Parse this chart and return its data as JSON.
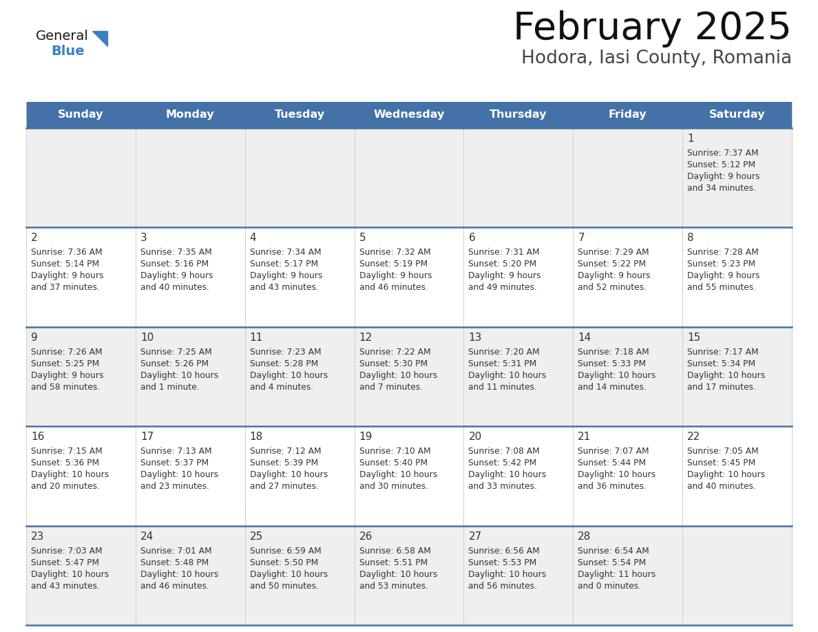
{
  "title": "February 2025",
  "subtitle": "Hodora, Iasi County, Romania",
  "header_color": "#4472A8",
  "header_text_color": "#FFFFFF",
  "cell_bg_even": "#EFEFEF",
  "cell_bg_odd": "#FFFFFF",
  "divider_color": "#4472A8",
  "text_color": "#333333",
  "day_headers": [
    "Sunday",
    "Monday",
    "Tuesday",
    "Wednesday",
    "Thursday",
    "Friday",
    "Saturday"
  ],
  "weeks": [
    [
      {
        "day": "",
        "info": ""
      },
      {
        "day": "",
        "info": ""
      },
      {
        "day": "",
        "info": ""
      },
      {
        "day": "",
        "info": ""
      },
      {
        "day": "",
        "info": ""
      },
      {
        "day": "",
        "info": ""
      },
      {
        "day": "1",
        "info": "Sunrise: 7:37 AM\nSunset: 5:12 PM\nDaylight: 9 hours\nand 34 minutes."
      }
    ],
    [
      {
        "day": "2",
        "info": "Sunrise: 7:36 AM\nSunset: 5:14 PM\nDaylight: 9 hours\nand 37 minutes."
      },
      {
        "day": "3",
        "info": "Sunrise: 7:35 AM\nSunset: 5:16 PM\nDaylight: 9 hours\nand 40 minutes."
      },
      {
        "day": "4",
        "info": "Sunrise: 7:34 AM\nSunset: 5:17 PM\nDaylight: 9 hours\nand 43 minutes."
      },
      {
        "day": "5",
        "info": "Sunrise: 7:32 AM\nSunset: 5:19 PM\nDaylight: 9 hours\nand 46 minutes."
      },
      {
        "day": "6",
        "info": "Sunrise: 7:31 AM\nSunset: 5:20 PM\nDaylight: 9 hours\nand 49 minutes."
      },
      {
        "day": "7",
        "info": "Sunrise: 7:29 AM\nSunset: 5:22 PM\nDaylight: 9 hours\nand 52 minutes."
      },
      {
        "day": "8",
        "info": "Sunrise: 7:28 AM\nSunset: 5:23 PM\nDaylight: 9 hours\nand 55 minutes."
      }
    ],
    [
      {
        "day": "9",
        "info": "Sunrise: 7:26 AM\nSunset: 5:25 PM\nDaylight: 9 hours\nand 58 minutes."
      },
      {
        "day": "10",
        "info": "Sunrise: 7:25 AM\nSunset: 5:26 PM\nDaylight: 10 hours\nand 1 minute."
      },
      {
        "day": "11",
        "info": "Sunrise: 7:23 AM\nSunset: 5:28 PM\nDaylight: 10 hours\nand 4 minutes."
      },
      {
        "day": "12",
        "info": "Sunrise: 7:22 AM\nSunset: 5:30 PM\nDaylight: 10 hours\nand 7 minutes."
      },
      {
        "day": "13",
        "info": "Sunrise: 7:20 AM\nSunset: 5:31 PM\nDaylight: 10 hours\nand 11 minutes."
      },
      {
        "day": "14",
        "info": "Sunrise: 7:18 AM\nSunset: 5:33 PM\nDaylight: 10 hours\nand 14 minutes."
      },
      {
        "day": "15",
        "info": "Sunrise: 7:17 AM\nSunset: 5:34 PM\nDaylight: 10 hours\nand 17 minutes."
      }
    ],
    [
      {
        "day": "16",
        "info": "Sunrise: 7:15 AM\nSunset: 5:36 PM\nDaylight: 10 hours\nand 20 minutes."
      },
      {
        "day": "17",
        "info": "Sunrise: 7:13 AM\nSunset: 5:37 PM\nDaylight: 10 hours\nand 23 minutes."
      },
      {
        "day": "18",
        "info": "Sunrise: 7:12 AM\nSunset: 5:39 PM\nDaylight: 10 hours\nand 27 minutes."
      },
      {
        "day": "19",
        "info": "Sunrise: 7:10 AM\nSunset: 5:40 PM\nDaylight: 10 hours\nand 30 minutes."
      },
      {
        "day": "20",
        "info": "Sunrise: 7:08 AM\nSunset: 5:42 PM\nDaylight: 10 hours\nand 33 minutes."
      },
      {
        "day": "21",
        "info": "Sunrise: 7:07 AM\nSunset: 5:44 PM\nDaylight: 10 hours\nand 36 minutes."
      },
      {
        "day": "22",
        "info": "Sunrise: 7:05 AM\nSunset: 5:45 PM\nDaylight: 10 hours\nand 40 minutes."
      }
    ],
    [
      {
        "day": "23",
        "info": "Sunrise: 7:03 AM\nSunset: 5:47 PM\nDaylight: 10 hours\nand 43 minutes."
      },
      {
        "day": "24",
        "info": "Sunrise: 7:01 AM\nSunset: 5:48 PM\nDaylight: 10 hours\nand 46 minutes."
      },
      {
        "day": "25",
        "info": "Sunrise: 6:59 AM\nSunset: 5:50 PM\nDaylight: 10 hours\nand 50 minutes."
      },
      {
        "day": "26",
        "info": "Sunrise: 6:58 AM\nSunset: 5:51 PM\nDaylight: 10 hours\nand 53 minutes."
      },
      {
        "day": "27",
        "info": "Sunrise: 6:56 AM\nSunset: 5:53 PM\nDaylight: 10 hours\nand 56 minutes."
      },
      {
        "day": "28",
        "info": "Sunrise: 6:54 AM\nSunset: 5:54 PM\nDaylight: 11 hours\nand 0 minutes."
      },
      {
        "day": "",
        "info": ""
      }
    ]
  ],
  "logo_general_color": "#1a1a1a",
  "logo_blue_color": "#3A7FC1",
  "logo_triangle_color": "#3A7FC1",
  "fig_width": 11.88,
  "fig_height": 9.18,
  "dpi": 100
}
